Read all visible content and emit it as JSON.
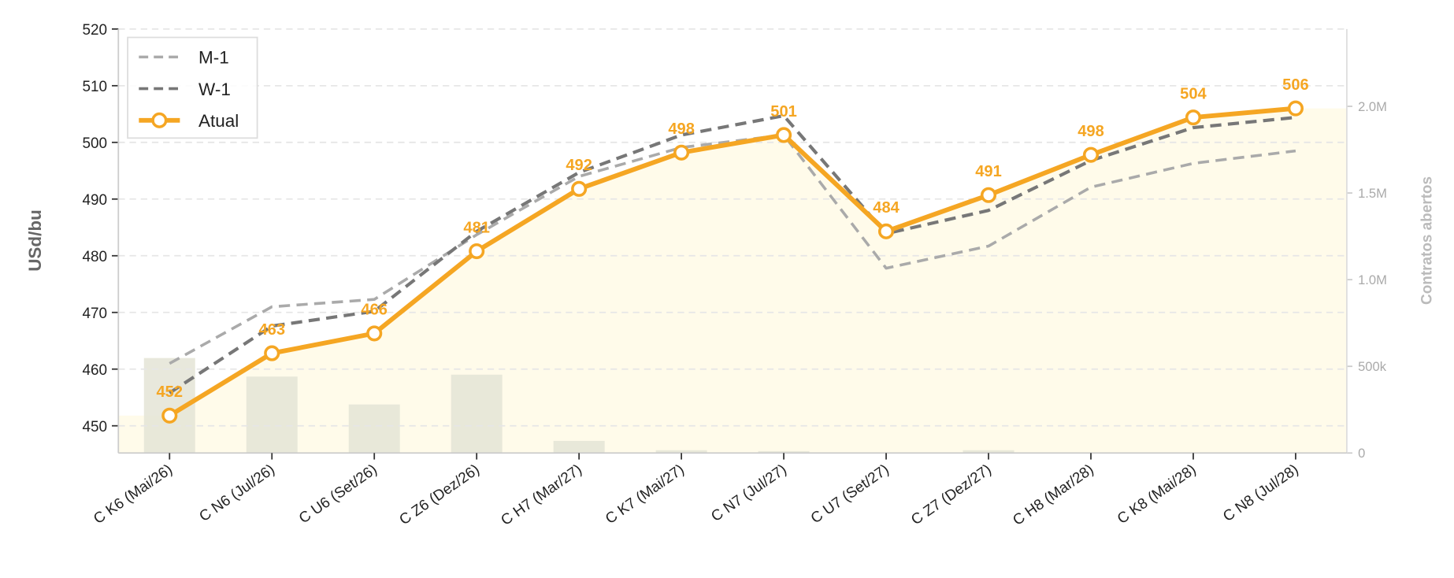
{
  "chart_data": {
    "type": "line",
    "y_label": "USd/bu",
    "y2_label": "Contratos abertos",
    "categories": [
      "C K6 (Mai/26)",
      "C N6 (Jul/26)",
      "C U6 (Set/26)",
      "C Z6 (Dez/26)",
      "C H7 (Mar/27)",
      "C K7 (Mai/27)",
      "C N7 (Jul/27)",
      "C U7 (Set/27)",
      "C Z7 (Dez/27)",
      "C H8 (Mar/28)",
      "C K8 (Mai/28)",
      "C N8 (Jul/28)"
    ],
    "series": [
      {
        "name": "M-1",
        "color": "#aaaaaa",
        "style": "dashed",
        "values": [
          461.0,
          471.0,
          472.3,
          483.7,
          494.0,
          499.1,
          501.3,
          477.8,
          481.7,
          492.1,
          496.3,
          498.5
        ]
      },
      {
        "name": "W-1",
        "color": "#777777",
        "style": "dashed",
        "values": [
          455.8,
          467.6,
          470.2,
          484.3,
          494.7,
          501.3,
          504.7,
          483.9,
          488.0,
          496.8,
          502.6,
          504.4
        ]
      },
      {
        "name": "Atual",
        "color": "#f5a623",
        "style": "solid",
        "markers": true,
        "values": [
          451.8,
          462.8,
          466.3,
          480.8,
          491.8,
          498.2,
          501.3,
          484.3,
          490.7,
          497.8,
          504.4,
          506.0
        ],
        "value_labels": [
          "452",
          "463",
          "466",
          "481",
          "492",
          "498",
          "501",
          "484",
          "491",
          "498",
          "504",
          "506"
        ]
      }
    ],
    "bars": {
      "axis": "y2",
      "color": "#e4e4d6",
      "values": [
        548000,
        441000,
        280000,
        452000,
        70000,
        16000,
        11000,
        2000,
        16000,
        0,
        0,
        0
      ]
    },
    "ylim": [
      445.2,
      520
    ],
    "yticks": [
      450,
      460,
      470,
      480,
      490,
      500,
      510,
      520
    ],
    "y2lim": [
      0,
      2446000
    ],
    "y2ticks": [
      0,
      {
        "value": 500000,
        "label": "500k"
      },
      {
        "value": 1000000,
        "label": "1.0M"
      },
      {
        "value": 1500000,
        "label": "1.5M"
      },
      {
        "value": 2000000,
        "label": "2.0M"
      }
    ],
    "grid": true,
    "legend": "upper-left"
  }
}
